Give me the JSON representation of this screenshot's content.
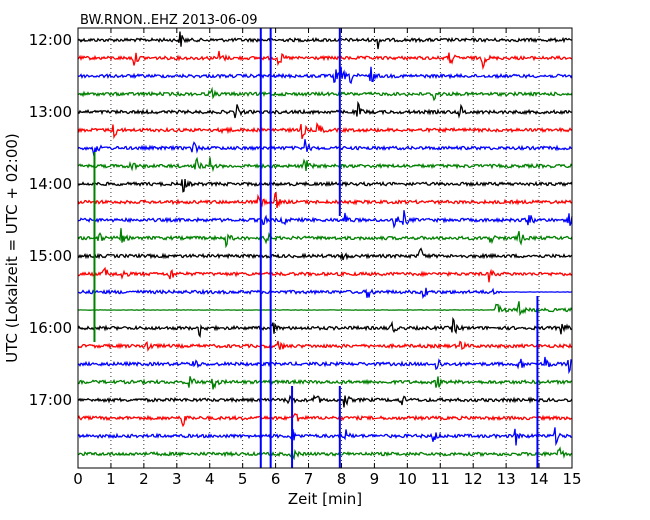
{
  "chart_data": {
    "type": "line",
    "title": "BW.RNON..EHZ 2013-06-09",
    "xlabel": "Zeit  [min]",
    "ylabel": "UTC (Lokalzeit = UTC + 02:00)",
    "xlim": [
      0,
      15
    ],
    "x_ticks": [
      "0",
      "1",
      "2",
      "3",
      "4",
      "5",
      "6",
      "7",
      "8",
      "9",
      "10",
      "11",
      "12",
      "13",
      "14",
      "15"
    ],
    "y_ticks": [
      "12:00",
      "13:00",
      "14:00",
      "15:00",
      "16:00",
      "17:00"
    ],
    "grid": "vertical dotted",
    "trace_colors": [
      "#000000",
      "#ff0000",
      "#0000ff",
      "#008000"
    ],
    "series": [
      {
        "start": "12:00",
        "events": [
          3.1,
          9.1
        ]
      },
      {
        "start": "12:15",
        "events": [
          1.7,
          4.3,
          6.1,
          11.3,
          12.3
        ]
      },
      {
        "start": "12:30",
        "events": [
          7.8,
          8.0,
          8.3,
          8.9
        ]
      },
      {
        "start": "12:45",
        "events": [
          4.0,
          10.8
        ]
      },
      {
        "start": "13:00",
        "events": [
          4.8,
          8.5,
          11.6
        ]
      },
      {
        "start": "13:15",
        "events": [
          1.1,
          4.4,
          6.8,
          7.3
        ]
      },
      {
        "start": "13:30",
        "events": [
          0.5,
          3.5,
          6.9
        ]
      },
      {
        "start": "13:45",
        "events": [
          1.6,
          3.6,
          4.0,
          6.9
        ]
      },
      {
        "start": "14:00",
        "events": [
          3.2
        ]
      },
      {
        "start": "14:15",
        "events": [
          5.5,
          6.0
        ]
      },
      {
        "start": "14:30",
        "events": [
          5.6,
          6.2,
          8.1,
          9.6,
          9.9,
          13.7,
          14.9
        ]
      },
      {
        "start": "14:45",
        "events": [
          0.6,
          1.3,
          4.5,
          5.7,
          12.5,
          13.4
        ]
      },
      {
        "start": "15:00",
        "events": [
          8.0,
          10.4
        ]
      },
      {
        "start": "15:15",
        "events": [
          0.8,
          1.3,
          2.8,
          12.5
        ]
      },
      {
        "start": "15:30",
        "events": [
          8.8,
          10.5,
          12.6
        ]
      },
      {
        "start": "15:45",
        "events": [
          12.7,
          13.4
        ]
      },
      {
        "start": "16:00",
        "events": [
          3.7,
          5.9,
          9.5,
          11.4,
          14.7
        ]
      },
      {
        "start": "16:15",
        "events": [
          2.1,
          6.1,
          11.6
        ]
      },
      {
        "start": "16:30",
        "events": [
          3.5,
          10.9,
          13.4,
          14.2,
          14.9
        ]
      },
      {
        "start": "16:45",
        "events": [
          3.4,
          4.1,
          10.9
        ]
      },
      {
        "start": "17:00",
        "events": [
          6.4,
          7.2,
          8.1,
          9.8
        ]
      },
      {
        "start": "17:15",
        "events": [
          3.2,
          6.6
        ]
      },
      {
        "start": "17:30",
        "events": [
          6.5,
          8.1,
          10.8,
          13.3,
          14.5
        ]
      },
      {
        "start": "17:45",
        "events": [
          6.5,
          14.6
        ]
      }
    ],
    "vertical_lines": [
      {
        "x": 5.55,
        "color": "#0000ff",
        "rows": [
          0,
          24
        ]
      },
      {
        "x": 5.85,
        "color": "#0000ff",
        "rows": [
          0,
          24
        ]
      },
      {
        "x": 7.95,
        "color": "#0000ff",
        "rows": [
          0,
          10
        ]
      },
      {
        "x": 7.95,
        "color": "#0000ff",
        "rows": [
          20,
          24
        ]
      },
      {
        "x": 13.95,
        "color": "#0000ff",
        "rows": [
          15,
          24
        ]
      },
      {
        "x": 0.5,
        "color": "#008000",
        "rows": [
          7,
          17
        ]
      },
      {
        "x": 6.5,
        "color": "#0000ff",
        "rows": [
          20,
          24
        ]
      }
    ],
    "flat_segments": [
      {
        "row": 14,
        "from": 12.5,
        "to": 15,
        "color": "#0000ff"
      },
      {
        "row": 15,
        "from": 0,
        "to": 12.7,
        "color": "#008000"
      }
    ]
  }
}
